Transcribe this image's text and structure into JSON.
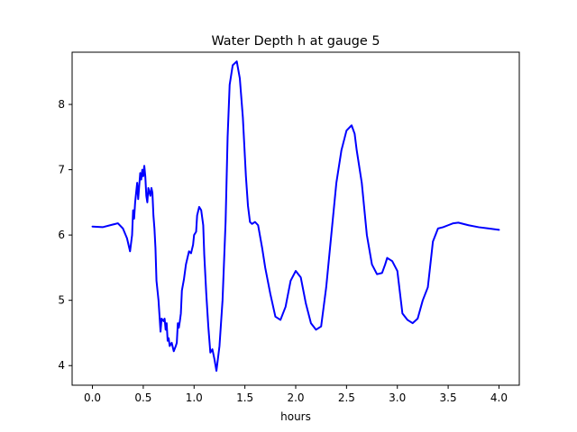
{
  "chart_data": {
    "type": "line",
    "title": "Water Depth h at gauge 5",
    "xlabel": "hours",
    "ylabel": "",
    "xlim": [
      -0.2,
      4.2
    ],
    "ylim": [
      3.7,
      8.8
    ],
    "xticks": [
      0.0,
      0.5,
      1.0,
      1.5,
      2.0,
      2.5,
      3.0,
      3.5,
      4.0
    ],
    "xtick_labels": [
      "0.0",
      "0.5",
      "1.0",
      "1.5",
      "2.0",
      "2.5",
      "3.0",
      "3.5",
      "4.0"
    ],
    "yticks": [
      4,
      5,
      6,
      7,
      8
    ],
    "ytick_labels": [
      "4",
      "5",
      "6",
      "7",
      "8"
    ],
    "grid": false,
    "series": [
      {
        "color": "#0000ff",
        "x": [
          0.0,
          0.1,
          0.2,
          0.25,
          0.3,
          0.34,
          0.37,
          0.39,
          0.4,
          0.41,
          0.42,
          0.44,
          0.45,
          0.47,
          0.48,
          0.49,
          0.5,
          0.51,
          0.52,
          0.53,
          0.54,
          0.55,
          0.57,
          0.58,
          0.59,
          0.6,
          0.61,
          0.62,
          0.63,
          0.65,
          0.67,
          0.68,
          0.7,
          0.71,
          0.72,
          0.73,
          0.74,
          0.75,
          0.76,
          0.78,
          0.8,
          0.82,
          0.83,
          0.84,
          0.85,
          0.86,
          0.87,
          0.88,
          0.9,
          0.92,
          0.95,
          0.97,
          0.99,
          1.0,
          1.02,
          1.03,
          1.05,
          1.07,
          1.09,
          1.1,
          1.12,
          1.14,
          1.16,
          1.18,
          1.2,
          1.22,
          1.25,
          1.28,
          1.31,
          1.33,
          1.35,
          1.38,
          1.42,
          1.45,
          1.48,
          1.51,
          1.53,
          1.55,
          1.57,
          1.6,
          1.63,
          1.67,
          1.7,
          1.75,
          1.8,
          1.85,
          1.9,
          1.95,
          2.0,
          2.05,
          2.1,
          2.15,
          2.2,
          2.25,
          2.3,
          2.35,
          2.4,
          2.45,
          2.5,
          2.55,
          2.58,
          2.6,
          2.65,
          2.7,
          2.75,
          2.8,
          2.85,
          2.88,
          2.9,
          2.95,
          3.0,
          3.05,
          3.1,
          3.15,
          3.2,
          3.25,
          3.3,
          3.35,
          3.4,
          3.45,
          3.5,
          3.55,
          3.6,
          3.7,
          3.8,
          3.9,
          4.0
        ],
        "y": [
          6.13,
          6.12,
          6.16,
          6.18,
          6.1,
          5.95,
          5.75,
          6.0,
          6.38,
          6.25,
          6.5,
          6.8,
          6.55,
          6.95,
          6.85,
          7.0,
          6.9,
          7.06,
          6.9,
          6.6,
          6.5,
          6.72,
          6.6,
          6.72,
          6.65,
          6.3,
          6.1,
          5.8,
          5.3,
          5.0,
          4.52,
          4.72,
          4.68,
          4.72,
          4.55,
          4.65,
          4.38,
          4.42,
          4.3,
          4.35,
          4.22,
          4.3,
          4.35,
          4.65,
          4.58,
          4.68,
          4.8,
          5.15,
          5.32,
          5.55,
          5.75,
          5.72,
          5.85,
          6.0,
          6.05,
          6.3,
          6.43,
          6.38,
          6.15,
          5.7,
          5.1,
          4.6,
          4.2,
          4.25,
          4.1,
          3.92,
          4.3,
          5.0,
          6.2,
          7.5,
          8.3,
          8.6,
          8.66,
          8.4,
          7.8,
          6.9,
          6.45,
          6.2,
          6.17,
          6.2,
          6.15,
          5.8,
          5.5,
          5.1,
          4.75,
          4.7,
          4.9,
          5.3,
          5.45,
          5.35,
          4.95,
          4.65,
          4.55,
          4.6,
          5.2,
          6.0,
          6.8,
          7.3,
          7.6,
          7.68,
          7.55,
          7.3,
          6.8,
          6.0,
          5.55,
          5.4,
          5.42,
          5.55,
          5.65,
          5.6,
          5.45,
          4.8,
          4.7,
          4.65,
          4.72,
          5.0,
          5.2,
          5.9,
          6.1,
          6.12,
          6.15,
          6.18,
          6.19,
          6.15,
          6.12,
          6.1,
          6.08
        ]
      }
    ]
  }
}
